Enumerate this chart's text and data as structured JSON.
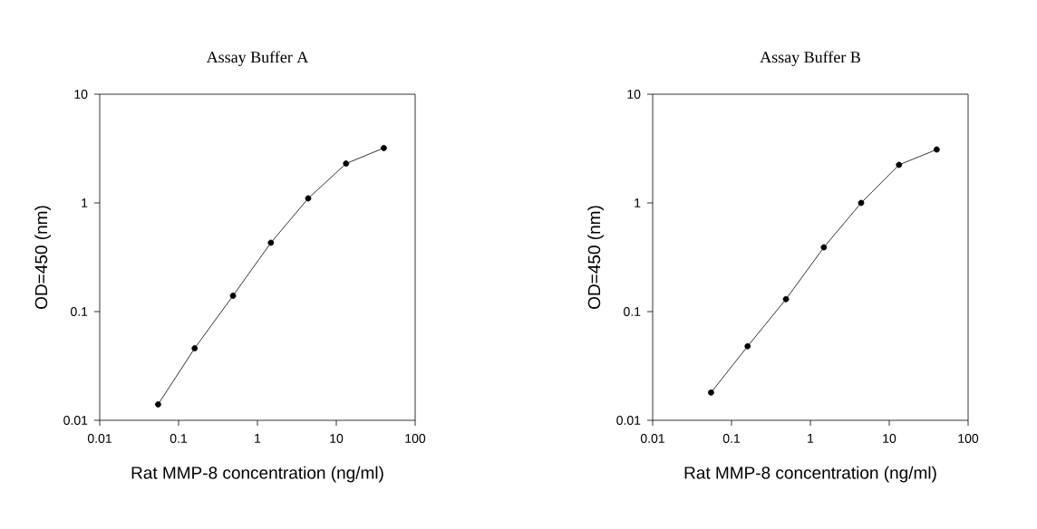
{
  "chart_data": [
    {
      "type": "line",
      "title": "Assay Buffer A",
      "xlabel": "Rat MMP-8 concentration (ng/ml)",
      "ylabel": "OD=450 (nm)",
      "log": "xy",
      "marker": "circle",
      "line_style": "solid",
      "grid": false,
      "xlim": [
        0.01,
        100
      ],
      "ylim": [
        0.01,
        10
      ],
      "xticks": [
        0.01,
        0.1,
        1,
        10,
        100
      ],
      "yticks": [
        0.01,
        0.1,
        1,
        10
      ],
      "series": [
        {
          "color": "#000000",
          "x": [
            0.055,
            0.16,
            0.49,
            1.48,
            4.4,
            13.3,
            40
          ],
          "values": [
            0.014,
            0.046,
            0.14,
            0.43,
            1.1,
            2.3,
            3.2
          ]
        }
      ]
    },
    {
      "type": "line",
      "title": "Assay Buffer B",
      "xlabel": "Rat MMP-8 concentration (ng/ml)",
      "ylabel": "OD=450 (nm)",
      "log": "xy",
      "marker": "circle",
      "line_style": "solid",
      "grid": false,
      "xlim": [
        0.01,
        100
      ],
      "ylim": [
        0.01,
        10
      ],
      "xticks": [
        0.01,
        0.1,
        1,
        10,
        100
      ],
      "yticks": [
        0.01,
        0.1,
        1,
        10
      ],
      "series": [
        {
          "color": "#000000",
          "x": [
            0.055,
            0.16,
            0.49,
            1.48,
            4.4,
            13.3,
            40
          ],
          "values": [
            0.018,
            0.048,
            0.13,
            0.39,
            1.0,
            2.24,
            3.1
          ]
        }
      ]
    }
  ]
}
